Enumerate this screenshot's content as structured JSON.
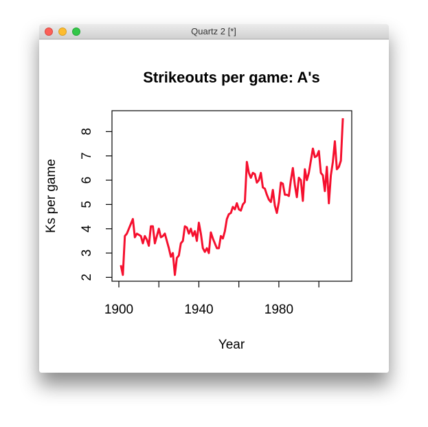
{
  "window": {
    "title": "Quartz 2 [*]"
  },
  "chart_data": {
    "type": "line",
    "title": "Strikeouts per game: A's",
    "x_label": "Year",
    "y_label": "Ks per game",
    "color": "#f5102e",
    "x": [
      1901,
      1902,
      1903,
      1904,
      1905,
      1906,
      1907,
      1908,
      1909,
      1910,
      1911,
      1912,
      1913,
      1914,
      1915,
      1916,
      1917,
      1918,
      1919,
      1920,
      1921,
      1922,
      1923,
      1924,
      1925,
      1926,
      1927,
      1928,
      1929,
      1930,
      1931,
      1932,
      1933,
      1934,
      1935,
      1936,
      1937,
      1938,
      1939,
      1940,
      1941,
      1942,
      1943,
      1944,
      1945,
      1946,
      1947,
      1948,
      1949,
      1950,
      1951,
      1952,
      1953,
      1954,
      1955,
      1956,
      1957,
      1958,
      1959,
      1960,
      1961,
      1962,
      1963,
      1964,
      1965,
      1966,
      1967,
      1968,
      1969,
      1970,
      1971,
      1972,
      1973,
      1974,
      1975,
      1976,
      1977,
      1978,
      1979,
      1980,
      1981,
      1982,
      1983,
      1984,
      1985,
      1986,
      1987,
      1988,
      1989,
      1990,
      1991,
      1992,
      1993,
      1994,
      1995,
      1996,
      1997,
      1998,
      1999,
      2000,
      2001,
      2002,
      2003,
      2004,
      2005,
      2006,
      2007,
      2008,
      2009,
      2010,
      2011,
      2012
    ],
    "values": [
      2.5,
      2.1,
      3.7,
      3.8,
      4.0,
      4.2,
      4.4,
      3.65,
      3.8,
      3.75,
      3.7,
      3.4,
      3.7,
      3.55,
      3.3,
      4.1,
      4.1,
      3.4,
      3.7,
      4.0,
      3.65,
      3.7,
      3.8,
      3.5,
      3.2,
      2.85,
      3.0,
      2.1,
      2.8,
      2.9,
      3.4,
      3.5,
      4.1,
      4.05,
      3.8,
      4.0,
      3.7,
      3.9,
      3.5,
      4.25,
      3.8,
      3.2,
      3.05,
      3.2,
      3.0,
      3.85,
      3.6,
      3.4,
      3.2,
      3.2,
      3.7,
      3.6,
      3.9,
      4.4,
      4.6,
      4.65,
      4.9,
      4.8,
      5.05,
      4.8,
      4.75,
      5.0,
      5.1,
      6.75,
      6.3,
      6.1,
      6.3,
      6.25,
      5.9,
      6.0,
      6.3,
      5.7,
      5.65,
      5.4,
      5.2,
      5.1,
      5.6,
      4.95,
      4.65,
      5.1,
      5.9,
      5.85,
      5.4,
      5.4,
      5.35,
      6.0,
      6.5,
      5.8,
      5.3,
      6.1,
      6.0,
      5.15,
      6.45,
      6.0,
      6.3,
      6.8,
      7.3,
      6.95,
      7.0,
      7.2,
      6.3,
      6.2,
      5.55,
      6.55,
      5.05,
      6.2,
      6.75,
      7.6,
      6.45,
      6.55,
      6.8,
      8.55
    ],
    "xlim": [
      1896.56,
      2016.44
    ],
    "xticks": [
      1900,
      {
        "value": 1920,
        "label": null
      },
      1940,
      {
        "value": 1960,
        "label": null
      },
      1980,
      {
        "value": 2000,
        "label": null
      }
    ],
    "ylim": [
      1.84,
      8.86
    ],
    "yticks": [
      2,
      3,
      4,
      5,
      6,
      7,
      8
    ]
  }
}
